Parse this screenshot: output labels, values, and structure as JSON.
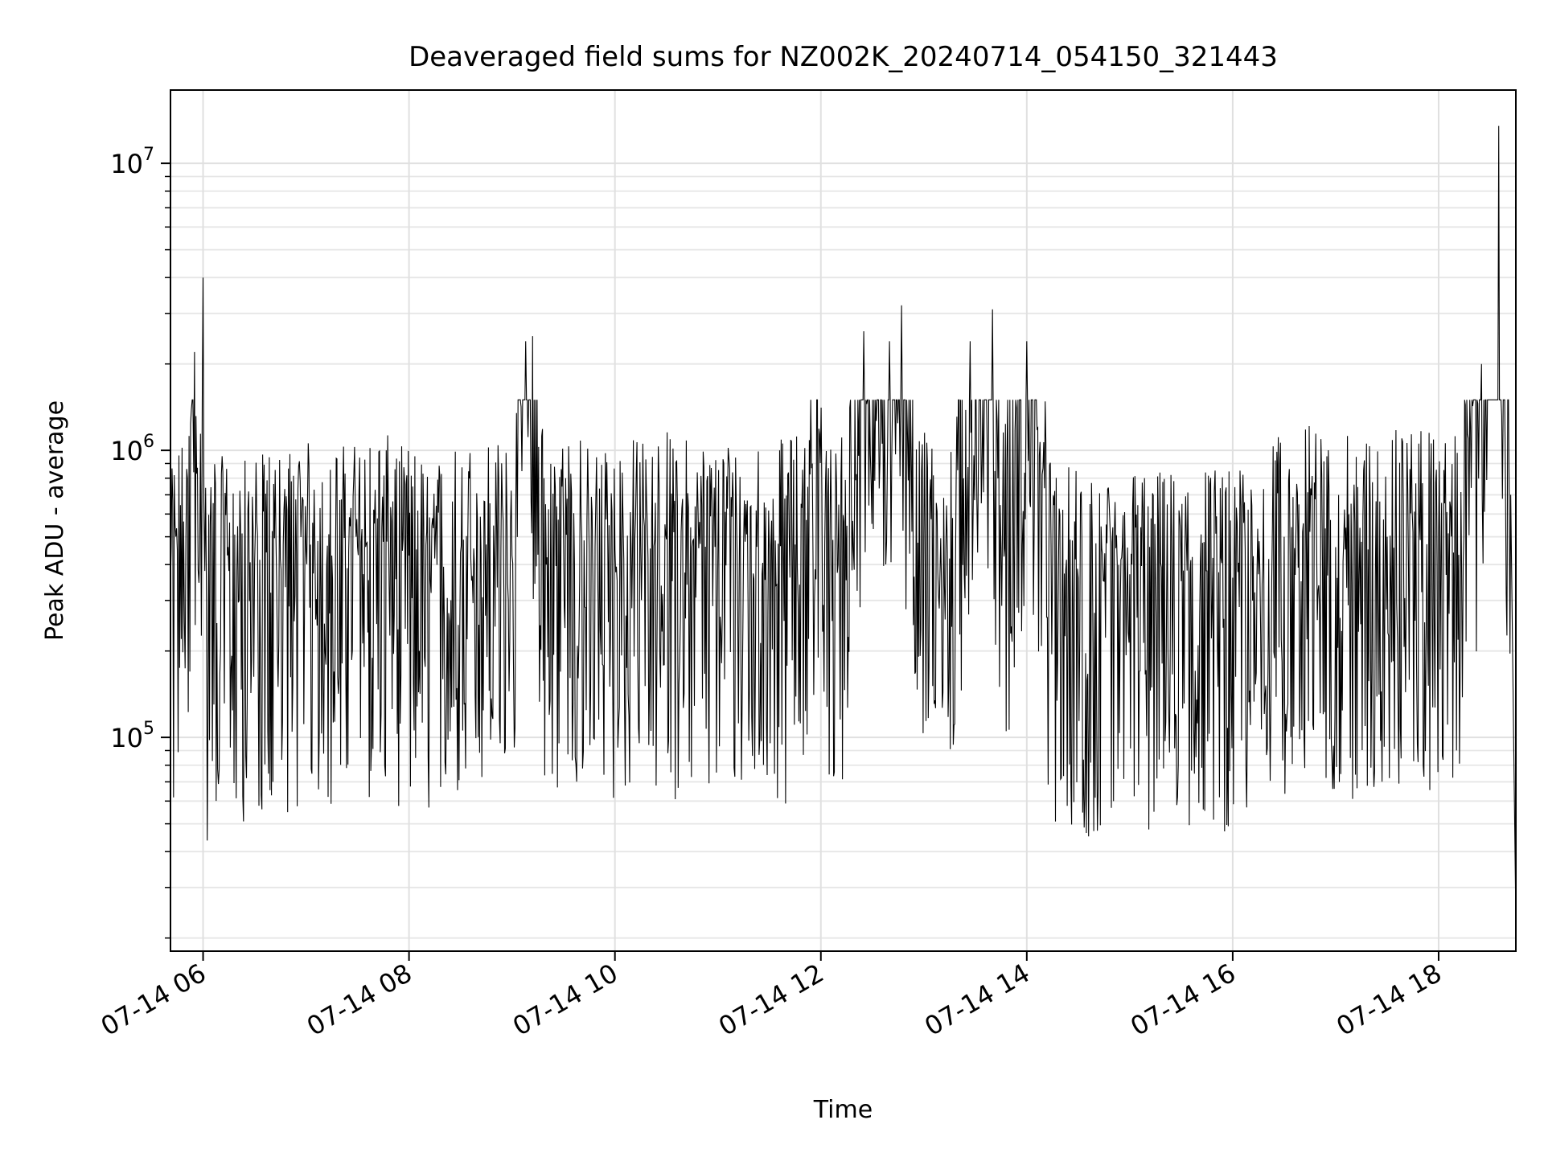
{
  "chart_data": {
    "type": "line",
    "title": "Deaveraged field sums for NZ002K_20240714_054150_321443",
    "xlabel": "Time",
    "ylabel": "Peak ADU - average",
    "yscale": "log",
    "ylim": [
      18000,
      18000000
    ],
    "xlim": [
      "2024-07-14 05:41",
      "2024-07-14 18:45"
    ],
    "x_ticks": [
      {
        "t": "2024-07-14 06:00",
        "label": "07-14 06"
      },
      {
        "t": "2024-07-14 08:00",
        "label": "07-14 08"
      },
      {
        "t": "2024-07-14 10:00",
        "label": "07-14 10"
      },
      {
        "t": "2024-07-14 12:00",
        "label": "07-14 12"
      },
      {
        "t": "2024-07-14 14:00",
        "label": "07-14 14"
      },
      {
        "t": "2024-07-14 16:00",
        "label": "07-14 16"
      },
      {
        "t": "2024-07-14 18:00",
        "label": "07-14 18"
      }
    ],
    "y_ticks": [
      {
        "value": 100000,
        "base": "10",
        "exp": "5"
      },
      {
        "value": 1000000,
        "base": "10",
        "exp": "6"
      },
      {
        "value": 10000000,
        "base": "10",
        "exp": "7"
      }
    ],
    "grid": true,
    "line_color": "#000000",
    "series": [
      {
        "x": [
          "2024-07-14 05:41",
          "2024-07-14 05:45",
          "2024-07-14 05:50",
          "2024-07-14 05:55",
          "2024-07-14 05:58",
          "2024-07-14 06:00",
          "2024-07-14 06:02",
          "2024-07-14 06:05",
          "2024-07-14 06:15",
          "2024-07-14 06:30",
          "2024-07-14 06:45",
          "2024-07-14 07:00",
          "2024-07-14 07:15",
          "2024-07-14 07:30",
          "2024-07-14 07:45",
          "2024-07-14 08:00",
          "2024-07-14 08:15",
          "2024-07-14 08:30",
          "2024-07-14 08:45",
          "2024-07-14 09:00",
          "2024-07-14 09:08",
          "2024-07-14 09:12",
          "2024-07-14 09:20",
          "2024-07-14 09:30",
          "2024-07-14 09:45",
          "2024-07-14 10:00",
          "2024-07-14 10:15",
          "2024-07-14 10:30",
          "2024-07-14 10:45",
          "2024-07-14 11:00",
          "2024-07-14 11:15",
          "2024-07-14 11:30",
          "2024-07-14 11:45",
          "2024-07-14 11:55",
          "2024-07-14 12:10",
          "2024-07-14 12:25",
          "2024-07-14 12:40",
          "2024-07-14 12:47",
          "2024-07-14 13:00",
          "2024-07-14 13:15",
          "2024-07-14 13:27",
          "2024-07-14 13:40",
          "2024-07-14 13:45",
          "2024-07-14 14:00",
          "2024-07-14 14:15",
          "2024-07-14 14:30",
          "2024-07-14 14:45",
          "2024-07-14 15:00",
          "2024-07-14 15:15",
          "2024-07-14 15:30",
          "2024-07-14 15:45",
          "2024-07-14 16:00",
          "2024-07-14 16:15",
          "2024-07-14 16:30",
          "2024-07-14 16:45",
          "2024-07-14 17:00",
          "2024-07-14 17:15",
          "2024-07-14 17:30",
          "2024-07-14 17:45",
          "2024-07-14 18:00",
          "2024-07-14 18:10",
          "2024-07-14 18:25",
          "2024-07-14 18:35",
          "2024-07-14 18:42",
          "2024-07-14 18:45"
        ],
        "y": [
          340000,
          450000,
          500000,
          2200000,
          430000,
          4000000,
          300000,
          430000,
          380000,
          400000,
          420000,
          450000,
          430000,
          460000,
          480000,
          430000,
          420000,
          440000,
          470000,
          430000,
          2400000,
          2500000,
          400000,
          520000,
          440000,
          450000,
          470000,
          490000,
          460000,
          450000,
          480000,
          450000,
          470000,
          900000,
          400000,
          2600000,
          2400000,
          3200000,
          500000,
          420000,
          2400000,
          3100000,
          450000,
          2400000,
          380000,
          360000,
          350000,
          370000,
          360000,
          350000,
          380000,
          360000,
          370000,
          500000,
          520000,
          460000,
          480000,
          500000,
          520000,
          510000,
          480000,
          2000000,
          13500000,
          700000,
          23000
        ]
      }
    ]
  }
}
